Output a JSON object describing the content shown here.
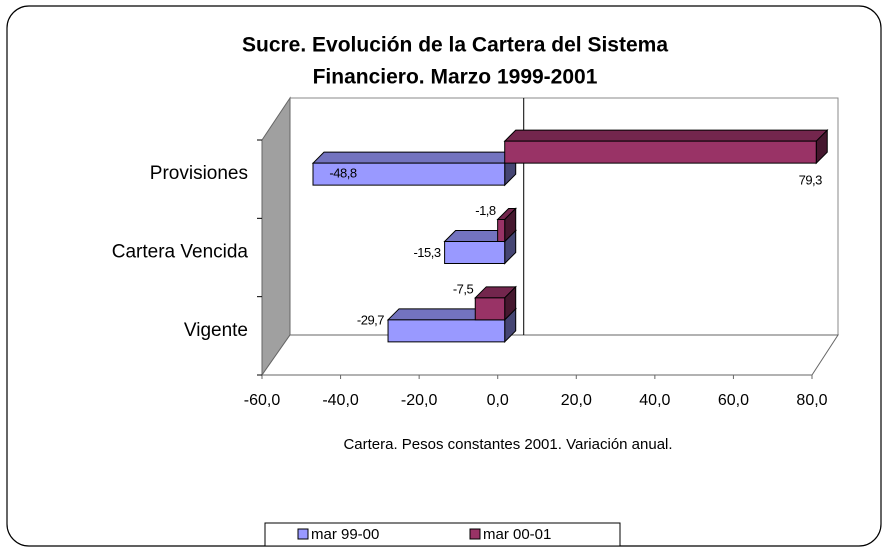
{
  "chart_data": {
    "type": "bar3d_horizontal",
    "title": [
      "Sucre. Evolución de la Cartera del Sistema",
      "Financiero. Marzo 1999-2001"
    ],
    "x_label": "Cartera. Pesos constantes 2001. Variación anual.",
    "categories": [
      "Vigente",
      "Cartera Vencida",
      "Provisiones"
    ],
    "series": [
      {
        "name": "mar 99-00",
        "color": "#9999ff",
        "values": [
          -29.7,
          -15.3,
          -48.8
        ],
        "value_labels": [
          "-29,7",
          "-15,3",
          "-48,8"
        ]
      },
      {
        "name": "mar 00-01",
        "color": "#993366",
        "values": [
          -7.5,
          -1.8,
          79.3
        ],
        "value_labels": [
          "-7,5",
          "-1,8",
          "79,3"
        ]
      }
    ],
    "xlim": [
      -60,
      80
    ],
    "xticks": [
      {
        "value": -60,
        "label": "-60,0"
      },
      {
        "value": -40,
        "label": "-40,0"
      },
      {
        "value": -20,
        "label": "-20,0"
      },
      {
        "value": 0,
        "label": "0,0"
      },
      {
        "value": 20,
        "label": "20,0"
      },
      {
        "value": 40,
        "label": "40,0"
      },
      {
        "value": 60,
        "label": "60,0"
      },
      {
        "value": 80,
        "label": "80,0"
      }
    ],
    "grid": false,
    "legend": "bottom"
  }
}
